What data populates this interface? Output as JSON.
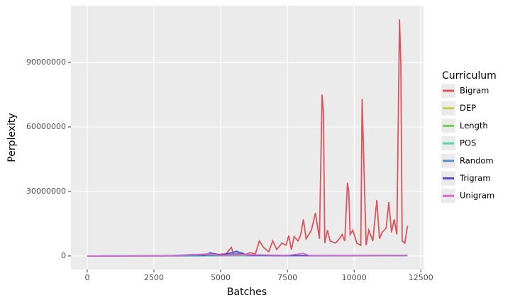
{
  "chart_data": {
    "type": "line",
    "x_label": "Batches",
    "y_label": "Perplexity",
    "legend_title": "Curriculum",
    "xlim": [
      -610,
      12600
    ],
    "ylim": [
      -6300000,
      116400000
    ],
    "xticks": [
      0,
      2500,
      5000,
      7500,
      10000,
      12500
    ],
    "yticks": [
      0,
      30000000,
      60000000,
      90000000
    ],
    "grid": true,
    "legend_position": "right",
    "series": [
      {
        "name": "Bigram",
        "color": "#d9565c",
        "x": [
          0,
          500,
          1000,
          1500,
          2000,
          2500,
          3000,
          3500,
          4000,
          4500,
          5000,
          5200,
          5400,
          5500,
          5700,
          5900,
          6100,
          6300,
          6450,
          6600,
          6800,
          6950,
          7100,
          7300,
          7450,
          7550,
          7650,
          7750,
          7900,
          8000,
          8100,
          8200,
          8400,
          8550,
          8700,
          8800,
          8850,
          8900,
          9000,
          9100,
          9300,
          9450,
          9550,
          9650,
          9750,
          9800,
          9850,
          9950,
          10100,
          10250,
          10300,
          10350,
          10450,
          10550,
          10700,
          10850,
          10950,
          11050,
          11200,
          11300,
          11400,
          11500,
          11600,
          11700,
          11750,
          11800,
          11900,
          12000
        ],
        "values": [
          0,
          0,
          0,
          0,
          100000,
          100000,
          200000,
          200000,
          300000,
          500000,
          800000,
          1000000,
          4000000,
          500000,
          1000000,
          500000,
          1500000,
          1000000,
          7000000,
          4000000,
          2000000,
          7000000,
          3000000,
          6000000,
          5000000,
          9500000,
          3000000,
          9000000,
          7000000,
          10000000,
          17000000,
          8000000,
          12000000,
          20000000,
          8000000,
          75000000,
          67000000,
          6000000,
          12000000,
          7000000,
          6000000,
          8000000,
          10000000,
          7000000,
          34000000,
          30000000,
          10000000,
          12000000,
          6000000,
          5000000,
          73000000,
          50000000,
          5000000,
          12000000,
          7000000,
          26000000,
          8000000,
          11000000,
          13000000,
          25000000,
          11000000,
          17000000,
          10000000,
          110000000,
          90000000,
          7000000,
          6000000,
          14000000
        ]
      },
      {
        "name": "DEP",
        "color": "#c8cf4a",
        "x": [
          0,
          3000,
          6000,
          9000,
          12000
        ],
        "values": [
          0,
          50000,
          100000,
          150000,
          200000
        ]
      },
      {
        "name": "Length",
        "color": "#6fce56",
        "x": [
          0,
          3000,
          6000,
          9000,
          12000
        ],
        "values": [
          0,
          50000,
          100000,
          150000,
          150000
        ]
      },
      {
        "name": "POS",
        "color": "#5ed4a8",
        "x": [
          0,
          3000,
          6000,
          9000,
          12000
        ],
        "values": [
          0,
          50000,
          100000,
          100000,
          150000
        ]
      },
      {
        "name": "Random",
        "color": "#5b8ec7",
        "x": [
          0,
          3000,
          5000,
          5800,
          6000,
          9000,
          12000
        ],
        "values": [
          0,
          50000,
          300000,
          1500000,
          200000,
          150000,
          200000
        ]
      },
      {
        "name": "Trigram",
        "color": "#6547c4",
        "x": [
          0,
          3000,
          4000,
          4400,
          4600,
          5000,
          5300,
          5600,
          5900,
          6200,
          7000,
          9000,
          12000
        ],
        "values": [
          0,
          100000,
          700000,
          300000,
          1500000,
          400000,
          1200000,
          2200000,
          600000,
          300000,
          200000,
          200000,
          300000
        ]
      },
      {
        "name": "Unigram",
        "color": "#d56bd0",
        "x": [
          0,
          3000,
          4600,
          5000,
          6000,
          7500,
          8100,
          8300,
          9000,
          12000
        ],
        "values": [
          0,
          50000,
          1000000,
          200000,
          600000,
          300000,
          1200000,
          300000,
          200000,
          300000
        ]
      }
    ]
  }
}
